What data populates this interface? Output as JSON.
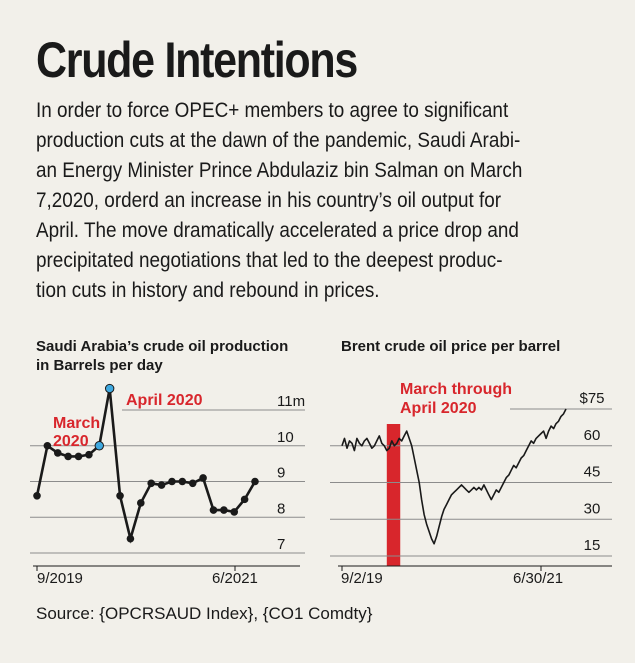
{
  "headline": "Crude Intentions",
  "body_lines": [
    "In order to force OPEC+ members to agree to significant",
    "production cuts at the dawn of the pandemic, Saudi Arabi-",
    "an Energy Minister Prince Abdulaziz bin Salman on March",
    "7,2020, orderd an increase in his country’s oil output for",
    "April. The move dramatically accelerated a price drop and",
    "precipitated negotiations that led to the deepest produc-",
    "tion cuts in history and rebound in prices."
  ],
  "source": "Source: {OPCRSAUD Index}, {CO1 Comdty}",
  "colors": {
    "background": "#f2f0ea",
    "highlight": "#d8262c",
    "marker_blue": "#3fa9e0",
    "line": "#1a1a1a",
    "grid": "#8c8c8c"
  },
  "chart_data": [
    {
      "type": "line",
      "title_lines": [
        "Saudi Arabia’s crude oil production",
        "in Barrels per day"
      ],
      "x_start_label": "9/2019",
      "x_end_label": "6/2021",
      "y_ticks": [
        7,
        8,
        9,
        10,
        11
      ],
      "y_tick_labels": [
        "7",
        "8",
        "9",
        "10",
        "11m"
      ],
      "ylim": [
        7,
        11
      ],
      "grid": true,
      "markers": true,
      "values": [
        8.6,
        10.0,
        9.8,
        9.7,
        9.7,
        9.75,
        10.0,
        11.6,
        8.6,
        7.4,
        8.4,
        8.95,
        8.9,
        9.0,
        9.0,
        8.95,
        9.1,
        8.2,
        8.2,
        8.15,
        8.5,
        9.0
      ],
      "highlights": [
        {
          "label_lines": [
            "March",
            "2020"
          ],
          "index": 6
        },
        {
          "label_lines": [
            "April 2020"
          ],
          "index": 7
        }
      ]
    },
    {
      "type": "line",
      "title_lines": [
        "Brent crude oil price per barrel"
      ],
      "x_start_label": "9/2/19",
      "x_end_label": "6/30/21",
      "y_ticks": [
        15,
        30,
        45,
        60,
        75
      ],
      "y_tick_labels": [
        "15",
        "30",
        "45",
        "60",
        "$75"
      ],
      "ylim": [
        15,
        75
      ],
      "grid": true,
      "band_label_lines": [
        "March through",
        "April 2020"
      ],
      "band_range": [
        0.2,
        0.26
      ],
      "values": [
        60,
        63,
        59,
        62,
        61,
        58,
        63,
        61,
        60,
        62,
        63,
        61,
        59,
        60,
        62,
        64,
        61,
        60,
        58,
        59,
        62,
        60,
        61,
        63,
        62,
        64,
        66,
        63,
        60,
        55,
        50,
        45,
        38,
        32,
        28,
        25,
        22,
        20,
        23,
        27,
        31,
        34,
        36,
        38,
        40,
        41,
        42,
        43,
        44,
        43,
        42,
        41,
        42,
        43,
        42,
        43,
        42,
        44,
        42,
        40,
        38,
        40,
        42,
        41,
        43,
        45,
        47,
        48,
        50,
        52,
        51,
        53,
        55,
        56,
        58,
        60,
        62,
        61,
        63,
        64,
        65,
        66,
        63,
        66,
        68,
        67,
        69,
        70,
        72,
        73,
        75
      ]
    }
  ]
}
